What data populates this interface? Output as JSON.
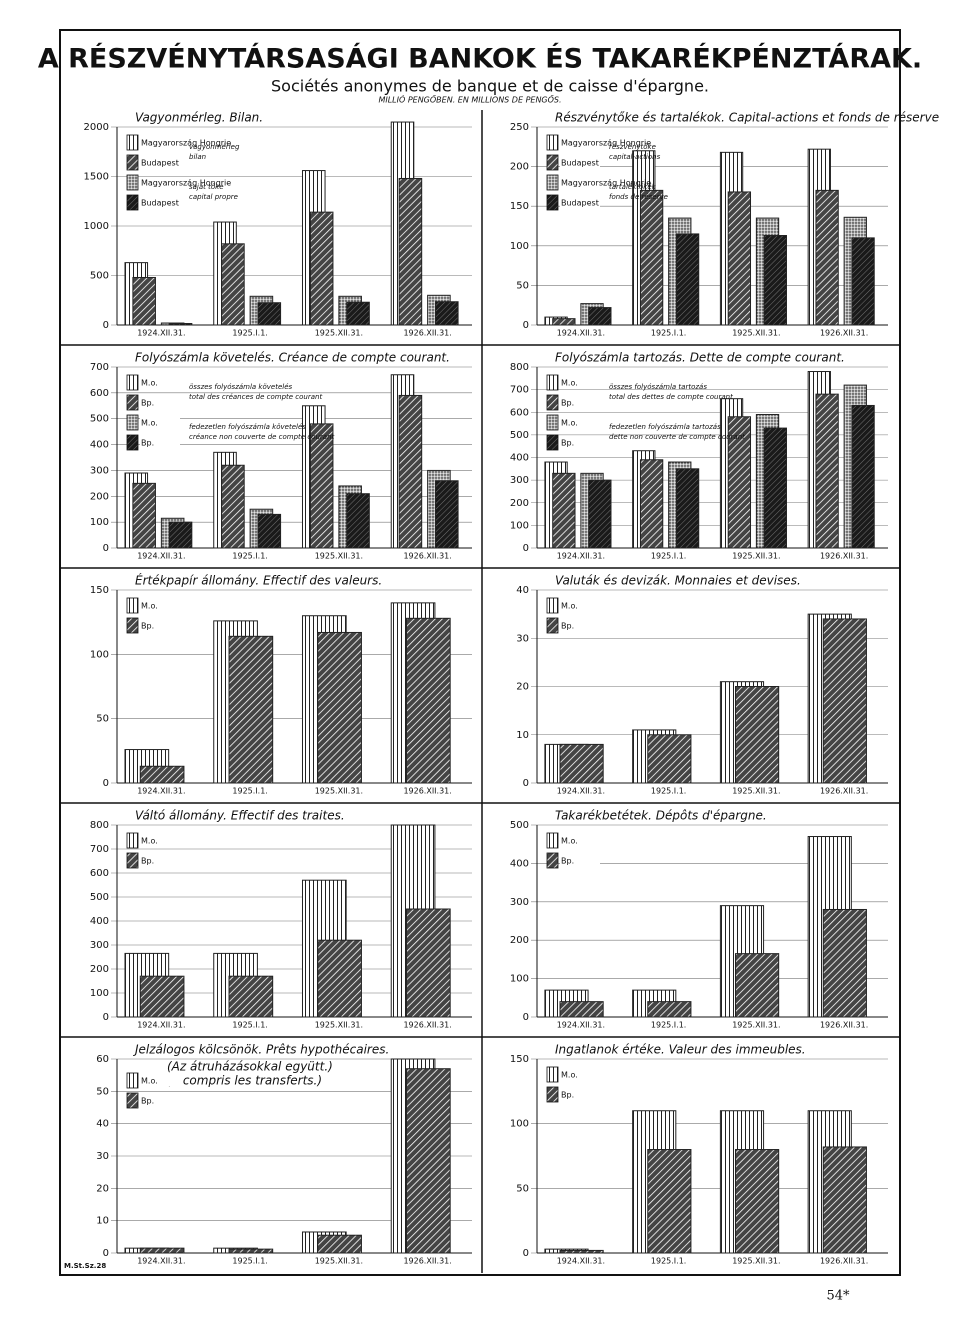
{
  "header": {
    "title": "A RÉSZVÉNYTÁRSASÁGI BANKOK ÉS TAKARÉKPÉNZTÁRAK.",
    "subtitle": "Sociétés anonymes de banque et de caisse d'épargne.",
    "unit": "MILLIÓ PENGŐBEN. EN MILLIONS DE PENGŐS."
  },
  "footer": {
    "code": "M.St.Sz.28",
    "page": "54*"
  },
  "chart_data": [
    {
      "type": "bar",
      "title": "Vagyonmérleg. Bilan.",
      "categories": [
        "1924.XII.31.",
        "1925.I.1.",
        "1925.XII.31.",
        "1926.XII.31."
      ],
      "ylim": [
        0,
        2000
      ],
      "yticks": [
        0,
        500,
        1000,
        1500,
        2000
      ],
      "grid": true,
      "color": "#222",
      "legend_notes": [
        [
          "vagyonmérleg",
          "bilan"
        ],
        [
          "saját tőke",
          "capital propre"
        ]
      ],
      "series": [
        {
          "name": "Magyarország Hongrie",
          "pattern": "vertical",
          "values": [
            630,
            1040,
            1560,
            2050
          ]
        },
        {
          "name": "Budapest",
          "pattern": "hatch",
          "values": [
            480,
            820,
            1140,
            1480
          ]
        },
        {
          "name": "Magyarország Hongrie",
          "pattern": "dots",
          "values": [
            20,
            290,
            290,
            300
          ]
        },
        {
          "name": "Budapest",
          "pattern": "dense",
          "values": [
            15,
            225,
            230,
            235
          ]
        }
      ]
    },
    {
      "type": "bar",
      "title": "Részvénytőke és tartalékok. Capital-actions et fonds de réserve",
      "categories": [
        "1924.XII.31.",
        "1925.I.1.",
        "1925.XII.31.",
        "1926.XII.31."
      ],
      "ylim": [
        0,
        250
      ],
      "yticks": [
        0,
        50,
        100,
        150,
        200,
        250
      ],
      "grid": true,
      "color": "#222",
      "legend_notes": [
        [
          "részvénytőke",
          "capital-actions"
        ],
        [
          "tartaléktőkék",
          "fonds de réserve"
        ]
      ],
      "series": [
        {
          "name": "Magyarország Hongrie",
          "pattern": "vertical",
          "values": [
            10,
            220,
            218,
            222
          ]
        },
        {
          "name": "Budapest",
          "pattern": "hatch",
          "values": [
            8,
            170,
            168,
            170
          ]
        },
        {
          "name": "Magyarország Hongrie",
          "pattern": "dots",
          "values": [
            27,
            135,
            135,
            136
          ]
        },
        {
          "name": "Budapest",
          "pattern": "dense",
          "values": [
            22,
            115,
            113,
            110
          ]
        }
      ]
    },
    {
      "type": "bar",
      "title": "Folyószámla követelés. Créance de compte courant.",
      "categories": [
        "1924.XII.31.",
        "1925.I.1.",
        "1925.XII.31.",
        "1926.XII.31."
      ],
      "ylim": [
        0,
        700
      ],
      "yticks": [
        0,
        100,
        200,
        300,
        400,
        500,
        600,
        700
      ],
      "grid": true,
      "color": "#222",
      "legend_notes": [
        [
          "összes folyószámla követelés",
          "total des créances de compte courant"
        ],
        [
          "fedezetlen folyószámla követelés",
          "créance non couverte de compte courant"
        ]
      ],
      "series": [
        {
          "name": "M.o.",
          "pattern": "vertical",
          "values": [
            290,
            370,
            550,
            670
          ]
        },
        {
          "name": "Bp.",
          "pattern": "hatch",
          "values": [
            250,
            320,
            480,
            590
          ]
        },
        {
          "name": "M.o.",
          "pattern": "dots",
          "values": [
            115,
            150,
            240,
            300
          ]
        },
        {
          "name": "Bp.",
          "pattern": "dense",
          "values": [
            100,
            130,
            210,
            260
          ]
        }
      ]
    },
    {
      "type": "bar",
      "title": "Folyószámla tartozás. Dette de compte courant.",
      "categories": [
        "1924.XII.31.",
        "1925.I.1.",
        "1925.XII.31.",
        "1926.XII.31."
      ],
      "ylim": [
        0,
        800
      ],
      "yticks": [
        0,
        100,
        200,
        300,
        400,
        500,
        600,
        700,
        800
      ],
      "grid": true,
      "color": "#222",
      "legend_notes": [
        [
          "összes folyószámla tartozás",
          "total des dettes de compte courant"
        ],
        [
          "fedezetlen folyószámla tartozás",
          "dette non couverte de compte courant"
        ]
      ],
      "series": [
        {
          "name": "M.o.",
          "pattern": "vertical",
          "values": [
            380,
            430,
            660,
            780
          ]
        },
        {
          "name": "Bp.",
          "pattern": "hatch",
          "values": [
            330,
            390,
            580,
            680
          ]
        },
        {
          "name": "M.o.",
          "pattern": "dots",
          "values": [
            330,
            380,
            590,
            720
          ]
        },
        {
          "name": "Bp.",
          "pattern": "dense",
          "values": [
            300,
            350,
            530,
            630
          ]
        }
      ]
    },
    {
      "type": "bar",
      "title": "Értékpapír állomány. Effectif des valeurs.",
      "categories": [
        "1924.XII.31.",
        "1925.I.1.",
        "1925.XII.31.",
        "1926.XII.31."
      ],
      "ylim": [
        0,
        150
      ],
      "yticks": [
        0,
        50,
        100,
        150
      ],
      "grid": true,
      "color": "#222",
      "series": [
        {
          "name": "M.o.",
          "pattern": "vertical",
          "values": [
            26,
            126,
            130,
            140
          ]
        },
        {
          "name": "Bp.",
          "pattern": "hatch",
          "values": [
            13,
            114,
            117,
            128
          ]
        }
      ]
    },
    {
      "type": "bar",
      "title": "Valuták és devizák. Monnaies et devises.",
      "categories": [
        "1924.XII.31.",
        "1925.I.1.",
        "1925.XII.31.",
        "1926.XII.31."
      ],
      "ylim": [
        0,
        40
      ],
      "yticks": [
        0,
        10,
        20,
        30,
        40
      ],
      "grid": true,
      "color": "#222",
      "series": [
        {
          "name": "M.o.",
          "pattern": "vertical",
          "values": [
            8,
            11,
            21,
            35
          ]
        },
        {
          "name": "Bp.",
          "pattern": "hatch",
          "values": [
            8,
            10,
            20,
            34
          ]
        }
      ]
    },
    {
      "type": "bar",
      "title": "Váltó állomány. Effectif des traites.",
      "categories": [
        "1924.XII.31.",
        "1925.I.1.",
        "1925.XII.31.",
        "1926.XII.31."
      ],
      "ylim": [
        0,
        800
      ],
      "yticks": [
        0,
        100,
        200,
        300,
        400,
        500,
        600,
        700,
        800
      ],
      "grid": true,
      "color": "#222",
      "series": [
        {
          "name": "M.o.",
          "pattern": "vertical",
          "values": [
            265,
            265,
            570,
            800
          ]
        },
        {
          "name": "Bp.",
          "pattern": "hatch",
          "values": [
            170,
            170,
            320,
            450
          ]
        }
      ]
    },
    {
      "type": "bar",
      "title": "Takarékbetétek. Dépôts d'épargne.",
      "categories": [
        "1924.XII.31.",
        "1925.I.1.",
        "1925.XII.31.",
        "1926.XII.31."
      ],
      "ylim": [
        0,
        500
      ],
      "yticks": [
        0,
        100,
        200,
        300,
        400,
        500
      ],
      "grid": true,
      "color": "#222",
      "series": [
        {
          "name": "M.o.",
          "pattern": "vertical",
          "values": [
            70,
            70,
            290,
            470
          ]
        },
        {
          "name": "Bp.",
          "pattern": "hatch",
          "values": [
            40,
            40,
            165,
            280
          ]
        }
      ]
    },
    {
      "type": "bar",
      "title": "Jelzálogos kölcsönök. Prêts hypothécaires.",
      "notes": [
        "(Az átruházásokkal együtt.)",
        "(Y compris les transferts.)"
      ],
      "categories": [
        "1924.XII.31.",
        "1925.I.1.",
        "1925.XII.31.",
        "1926.XII.31."
      ],
      "ylim": [
        0,
        60
      ],
      "yticks": [
        0,
        10,
        20,
        30,
        40,
        50,
        60
      ],
      "grid": true,
      "color": "#222",
      "series": [
        {
          "name": "M.o.",
          "pattern": "vertical",
          "values": [
            1.5,
            1.5,
            6.5,
            60
          ]
        },
        {
          "name": "Bp.",
          "pattern": "hatch",
          "values": [
            1.5,
            1.2,
            5.5,
            57
          ]
        }
      ]
    },
    {
      "type": "bar",
      "title": "Ingatlanok értéke. Valeur des immeubles.",
      "categories": [
        "1924.XII.31.",
        "1925.I.1.",
        "1925.XII.31.",
        "1926.XII.31."
      ],
      "ylim": [
        0,
        150
      ],
      "yticks": [
        0,
        50,
        100,
        150
      ],
      "grid": true,
      "color": "#222",
      "series": [
        {
          "name": "M.o.",
          "pattern": "vertical",
          "values": [
            3,
            110,
            110,
            110
          ]
        },
        {
          "name": "Bp.",
          "pattern": "hatch",
          "values": [
            2,
            80,
            80,
            82
          ]
        }
      ]
    }
  ]
}
